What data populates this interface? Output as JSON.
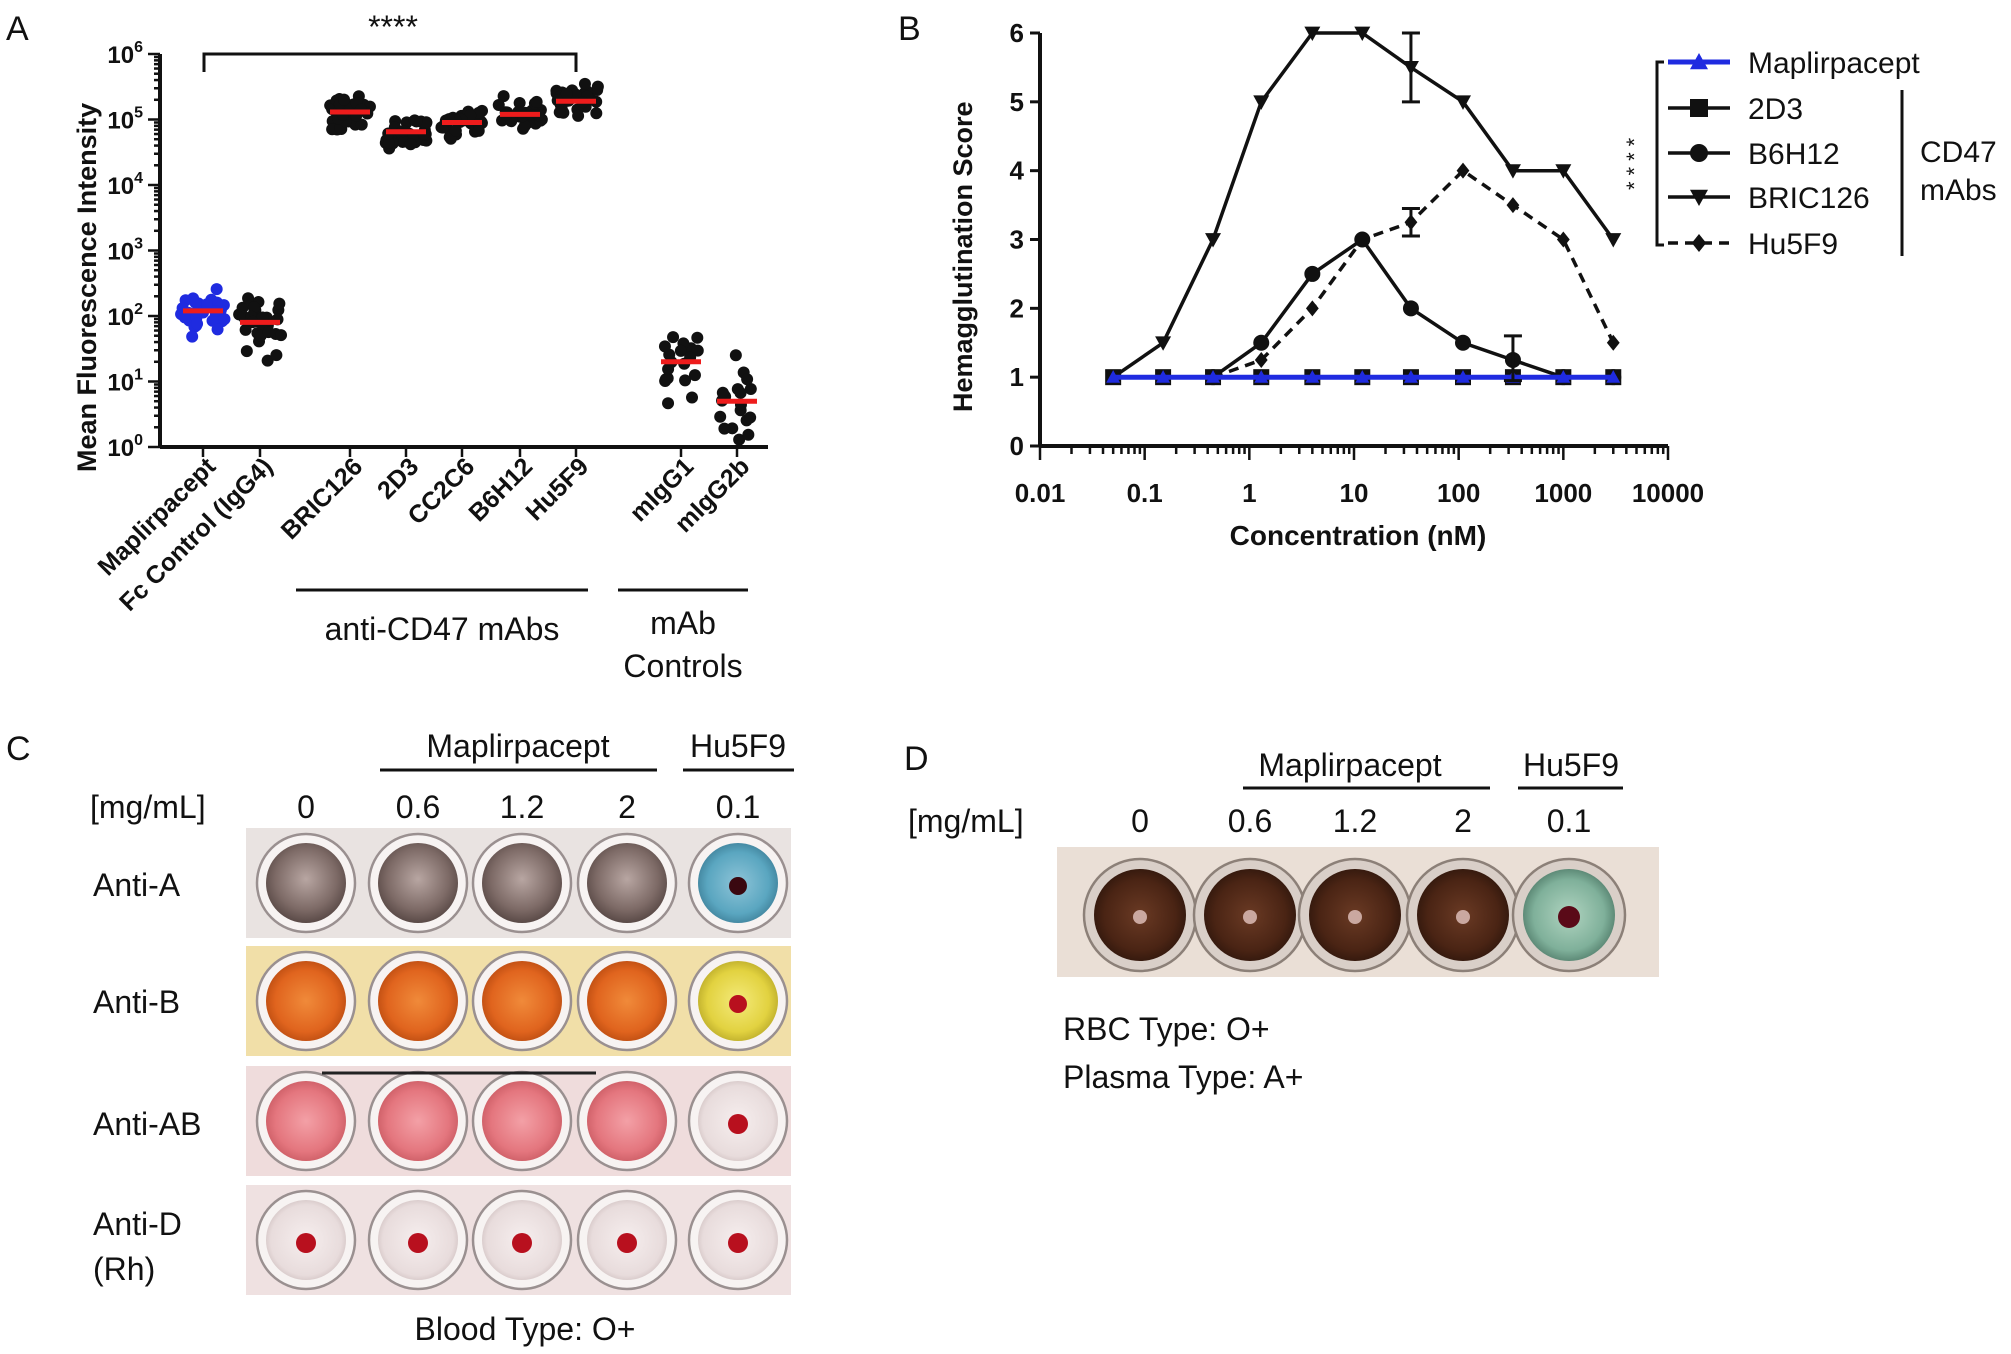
{
  "panels": {
    "A": {
      "label": "A",
      "significance": "****",
      "chart_data": {
        "type": "scatter",
        "ylabel": "Mean  Fluorescence Intensity",
        "yscale": "log",
        "ylim": [
          1,
          1000000
        ],
        "ytick_base": "10",
        "ytick_exponents": [
          "0",
          "1",
          "2",
          "3",
          "4",
          "5",
          "6"
        ],
        "groups_title_antiCD47": "anti-CD47 mAbs",
        "groups_title_controls_line1": "mAb",
        "groups_title_controls_line2": "Controls",
        "categories": [
          "Maplirpacept",
          "Fc Control (IgG4)",
          "BRIC126",
          "2D3",
          "CC2C6",
          "B6H12",
          "Hu5F9",
          "mIgG1",
          "mIgG2b"
        ],
        "medians": [
          120,
          80,
          130000,
          65000,
          90000,
          120000,
          190000,
          20,
          5
        ],
        "point_colors": [
          "#1f2be0",
          "#111111",
          "#111111",
          "#111111",
          "#111111",
          "#111111",
          "#111111",
          "#111111",
          "#111111"
        ],
        "median_color": "#ee1c1c"
      }
    },
    "B": {
      "label": "B",
      "significance": "****",
      "cd47_label_line1": "CD47",
      "cd47_label_line2": "mAbs",
      "chart_data": {
        "type": "line",
        "xlabel": "Concentration (nM)",
        "ylabel": "Hemagglutination Score",
        "xscale": "log",
        "xlim": [
          0.01,
          10000
        ],
        "ylim": [
          0,
          6
        ],
        "xtick_labels": [
          "0.01",
          "0.1",
          "1",
          "10",
          "100",
          "1000",
          "10000"
        ],
        "ytick_labels": [
          "0",
          "1",
          "2",
          "3",
          "4",
          "5",
          "6"
        ],
        "series": [
          {
            "name": "Maplirpacept",
            "color": "#1f2be0",
            "marker": "triangle-up",
            "dashed": false,
            "x": [
              0.05,
              0.15,
              0.45,
              1.3,
              4,
              12,
              35,
              110,
              330,
              1000,
              3000
            ],
            "y": [
              1,
              1,
              1,
              1,
              1,
              1,
              1,
              1,
              1,
              1,
              1
            ]
          },
          {
            "name": "2D3",
            "color": "#111111",
            "marker": "square",
            "dashed": false,
            "x": [
              0.05,
              0.15,
              0.45,
              1.3,
              4,
              12,
              35,
              110,
              330,
              1000,
              3000
            ],
            "y": [
              1,
              1,
              1,
              1,
              1,
              1,
              1,
              1,
              1,
              1,
              1
            ]
          },
          {
            "name": "B6H12",
            "color": "#111111",
            "marker": "circle",
            "dashed": false,
            "x": [
              0.45,
              1.3,
              4,
              12,
              35,
              110,
              330,
              1000,
              3000
            ],
            "y": [
              1,
              1.5,
              2.5,
              3,
              2,
              1.5,
              1.25,
              1,
              1
            ]
          },
          {
            "name": "BRIC126",
            "color": "#111111",
            "marker": "triangle-down",
            "dashed": false,
            "x": [
              0.05,
              0.15,
              0.45,
              1.3,
              4,
              12,
              35,
              110,
              330,
              1000,
              3000
            ],
            "y": [
              1,
              1.5,
              3,
              5,
              6,
              6,
              5.5,
              5,
              4,
              4,
              3
            ]
          },
          {
            "name": "Hu5F9",
            "color": "#111111",
            "marker": "diamond",
            "dashed": true,
            "x": [
              0.45,
              1.3,
              4,
              12,
              35,
              110,
              330,
              1000,
              3000
            ],
            "y": [
              1,
              1.25,
              2,
              3,
              3.25,
              4,
              3.5,
              3,
              1.5
            ]
          }
        ]
      }
    },
    "C": {
      "label": "C",
      "group_maplirpacept": "Maplirpacept",
      "group_hu5f9": "Hu5F9",
      "conc_label": "[mg/mL]",
      "concentrations": [
        "0",
        "0.6",
        "1.2",
        "2",
        "0.1"
      ],
      "row_labels": [
        "Anti-A",
        "Anti-B",
        "Anti-AB",
        "Anti-D",
        "(Rh)"
      ],
      "caption": "Blood Type: O+"
    },
    "D": {
      "label": "D",
      "group_maplirpacept": "Maplirpacept",
      "group_hu5f9": "Hu5F9",
      "conc_label": "[mg/mL]",
      "concentrations": [
        "0",
        "0.6",
        "1.2",
        "2",
        "0.1"
      ],
      "caption_line1": "RBC Type: O+",
      "caption_line2": "Plasma Type: A+"
    }
  }
}
